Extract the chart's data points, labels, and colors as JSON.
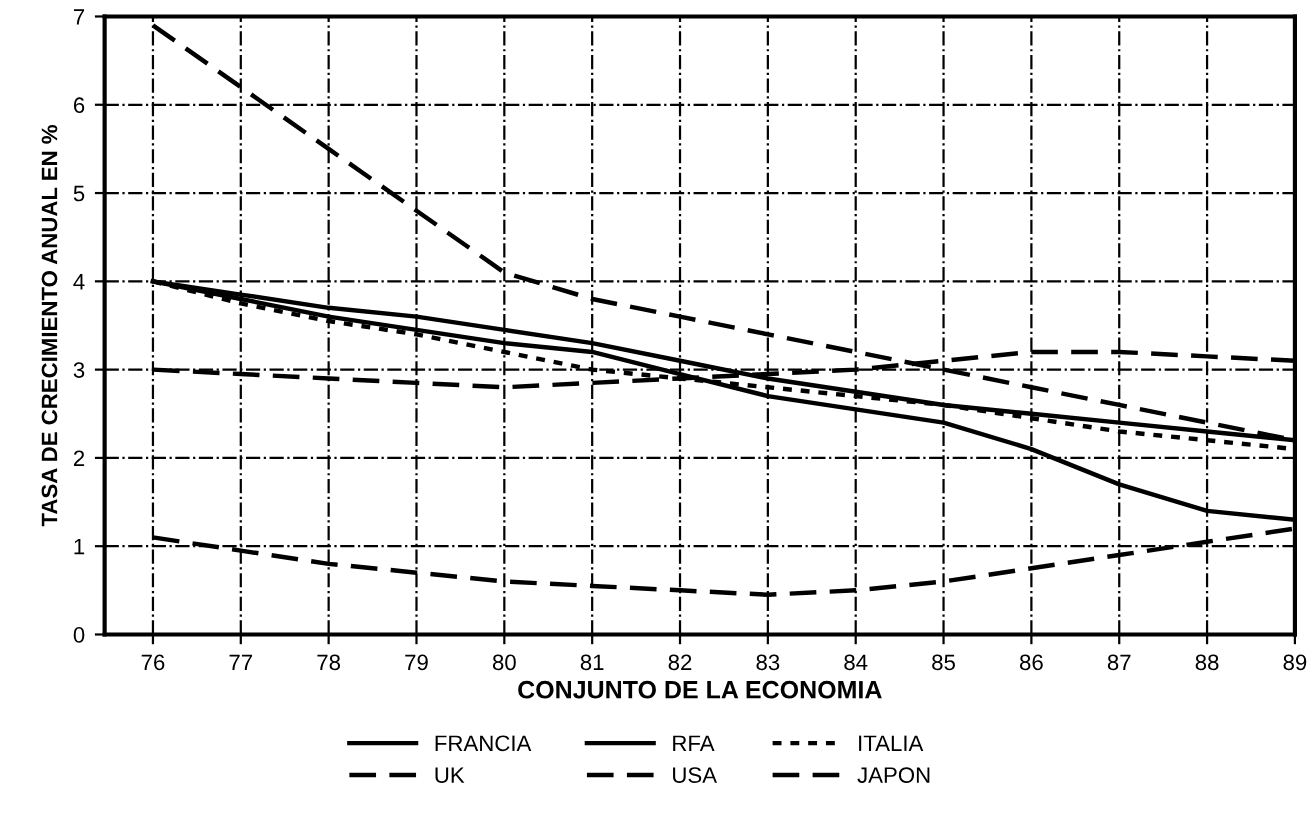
{
  "chart_data": {
    "type": "line",
    "xlabel": "CONJUNTO DE LA ECONOMIA",
    "ylabel": "TASA DE CRECIMIENTO ANUAL EN %",
    "x": [
      76,
      77,
      78,
      79,
      80,
      81,
      82,
      83,
      84,
      85,
      86,
      87,
      88,
      89
    ],
    "series": [
      {
        "name": "FRANCIA",
        "color": "#000000",
        "line_style": "solid",
        "values": [
          4.0,
          3.85,
          3.7,
          3.6,
          3.45,
          3.3,
          3.1,
          2.9,
          2.75,
          2.6,
          2.5,
          2.4,
          2.3,
          2.2
        ]
      },
      {
        "name": "RFA",
        "color": "#000000",
        "line_style": "solid",
        "values": [
          4.0,
          3.8,
          3.6,
          3.45,
          3.3,
          3.2,
          2.95,
          2.7,
          2.55,
          2.4,
          2.1,
          1.7,
          1.4,
          1.3
        ]
      },
      {
        "name": "ITALIA",
        "color": "#000000",
        "line_style": "dotted",
        "values": [
          4.0,
          3.75,
          3.55,
          3.4,
          3.2,
          3.0,
          2.9,
          2.8,
          2.7,
          2.6,
          2.45,
          2.3,
          2.2,
          2.1
        ]
      },
      {
        "name": "UK",
        "color": "#000000",
        "line_style": "dashed",
        "values": [
          1.1,
          0.95,
          0.8,
          0.7,
          0.6,
          0.55,
          0.5,
          0.45,
          0.5,
          0.6,
          0.75,
          0.9,
          1.05,
          1.2
        ]
      },
      {
        "name": "USA",
        "color": "#000000",
        "line_style": "dashed",
        "values": [
          3.0,
          2.95,
          2.9,
          2.85,
          2.8,
          2.85,
          2.9,
          2.95,
          3.0,
          3.1,
          3.2,
          3.2,
          3.15,
          3.1
        ]
      },
      {
        "name": "JAPON",
        "color": "#000000",
        "line_style": "dashed",
        "values": [
          6.9,
          6.2,
          5.5,
          4.8,
          4.1,
          3.8,
          3.6,
          3.4,
          3.2,
          3.0,
          2.8,
          2.6,
          2.4,
          2.2
        ]
      }
    ],
    "xlim": [
      75.45,
      89
    ],
    "ylim": [
      0,
      7
    ],
    "xticks": [
      76,
      77,
      78,
      79,
      80,
      81,
      82,
      83,
      84,
      85,
      86,
      87,
      88,
      89
    ],
    "yticks": [
      0,
      1,
      2,
      3,
      4,
      5,
      6,
      7
    ],
    "grid": true,
    "legend": "bottom",
    "marker": "none"
  }
}
